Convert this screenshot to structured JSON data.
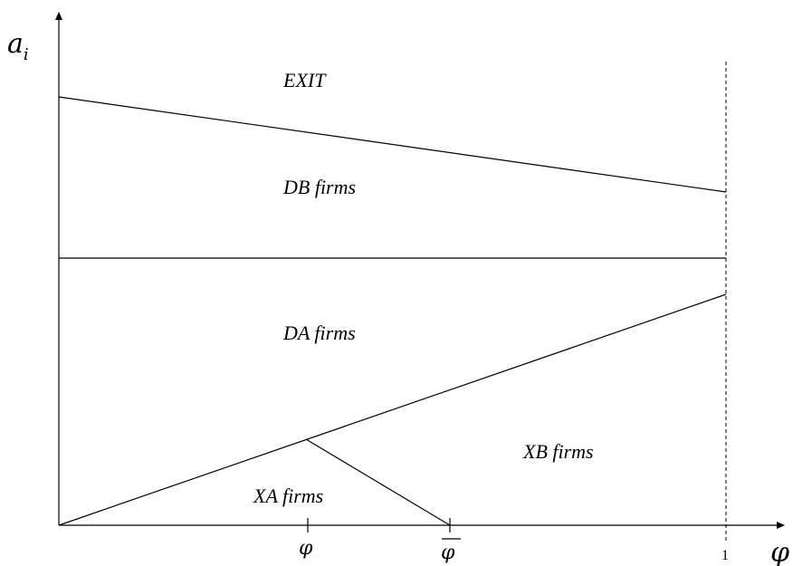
{
  "axes": {
    "y_label_base": "a",
    "y_label_sub": "i",
    "x_label": "φ"
  },
  "ticks": {
    "phi_lower": "φ",
    "phi_upper": "φ",
    "one": "1"
  },
  "regions": {
    "exit": "EXIT",
    "db": "DB firms",
    "da": "DA firms",
    "xa": "XA firms",
    "xb": "XB firms"
  }
}
